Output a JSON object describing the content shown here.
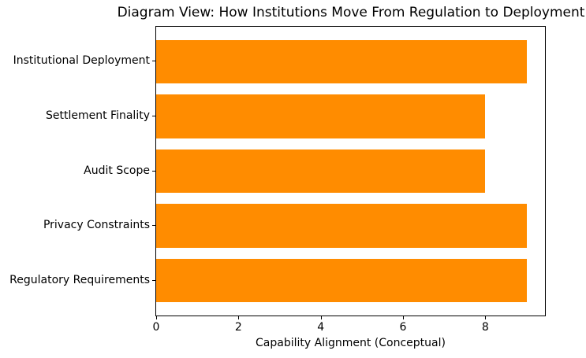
{
  "chart_data": {
    "type": "bar",
    "orientation": "horizontal",
    "title": "Diagram View: How Institutions Move From Regulation to Deployment",
    "xlabel": "Capability Alignment (Conceptual)",
    "ylabel": "",
    "categories": [
      "Institutional Deployment",
      "Settlement Finality",
      "Audit Scope",
      "Privacy Constraints",
      "Regulatory Requirements"
    ],
    "values": [
      9,
      8,
      8,
      9,
      9
    ],
    "xticks": [
      0,
      2,
      4,
      6,
      8
    ],
    "xlim": [
      0,
      9.45
    ],
    "grid": false,
    "legend": null,
    "bar_color": "#ff8c00",
    "background_color": "#ffffff",
    "spine_color": "#000000",
    "text_color": "#000000"
  }
}
